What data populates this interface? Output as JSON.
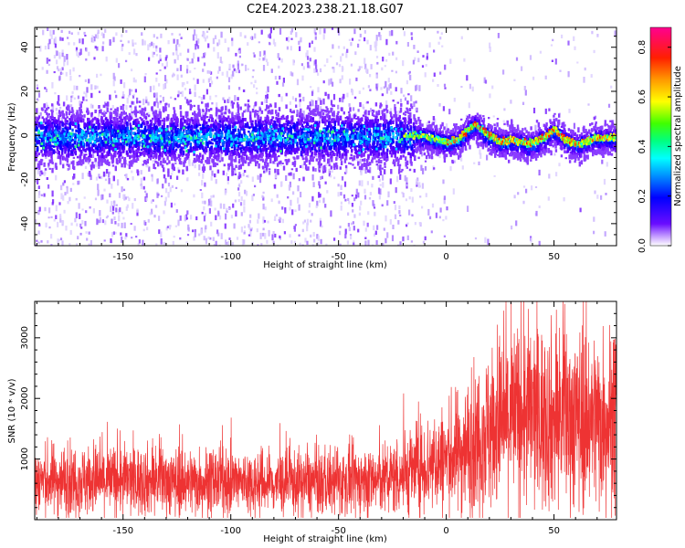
{
  "figure_title": "C2E4.2023.238.21.18.G07",
  "chart_data": [
    {
      "type": "heatmap",
      "title": "",
      "xlabel": "Height of straight line (km)",
      "ylabel": "Frequency (Hz)",
      "xlim": [
        -191,
        79
      ],
      "ylim": [
        -50,
        49
      ],
      "xticks": [
        -150,
        -100,
        -50,
        0,
        50
      ],
      "yticks": [
        -40,
        -20,
        0,
        20,
        40
      ],
      "grid": false,
      "colormap": [
        "#6a0dad",
        "#0000ff",
        "#00ffff",
        "#00ff00",
        "#ffff00",
        "#ff8800",
        "#ff0000",
        "#ff00a0"
      ],
      "colorbar": {
        "label": "Normalized spectral amplitude",
        "range": [
          0.0,
          0.88
        ],
        "ticks": [
          "0.0",
          "0.2",
          "0.4",
          "0.6",
          "0.8"
        ]
      },
      "ridge": {
        "description_points_x": [
          -191,
          -20,
          -10,
          0,
          5,
          10,
          13,
          18,
          25,
          30,
          38,
          45,
          50,
          55,
          60,
          70,
          79
        ],
        "description_points_y": [
          0,
          0,
          0,
          -3,
          -2,
          3,
          5,
          1,
          -3,
          -2,
          -4,
          -1,
          3,
          -2,
          -4,
          -1,
          -1
        ]
      }
    },
    {
      "type": "line",
      "title": "",
      "xlabel": "Height of straight line (km)",
      "ylabel": "SNR (10 * v/v)",
      "xlim": [
        -191,
        79
      ],
      "ylim": [
        0,
        3600
      ],
      "xticks": [
        -150,
        -100,
        -50,
        0,
        50
      ],
      "yticks": [
        1000,
        2000,
        3000
      ],
      "grid": false,
      "series": [
        {
          "color": "#ee3333",
          "envelope_x": [
            -191,
            -150,
            -100,
            -75,
            -50,
            -30,
            -20,
            -10,
            0,
            10,
            20,
            30,
            40,
            50,
            60,
            70,
            79
          ],
          "envelope_mean": [
            650,
            650,
            620,
            600,
            620,
            650,
            750,
            900,
            1000,
            1200,
            1500,
            1700,
            1750,
            1650,
            1700,
            1650,
            1700
          ]
        }
      ]
    }
  ]
}
